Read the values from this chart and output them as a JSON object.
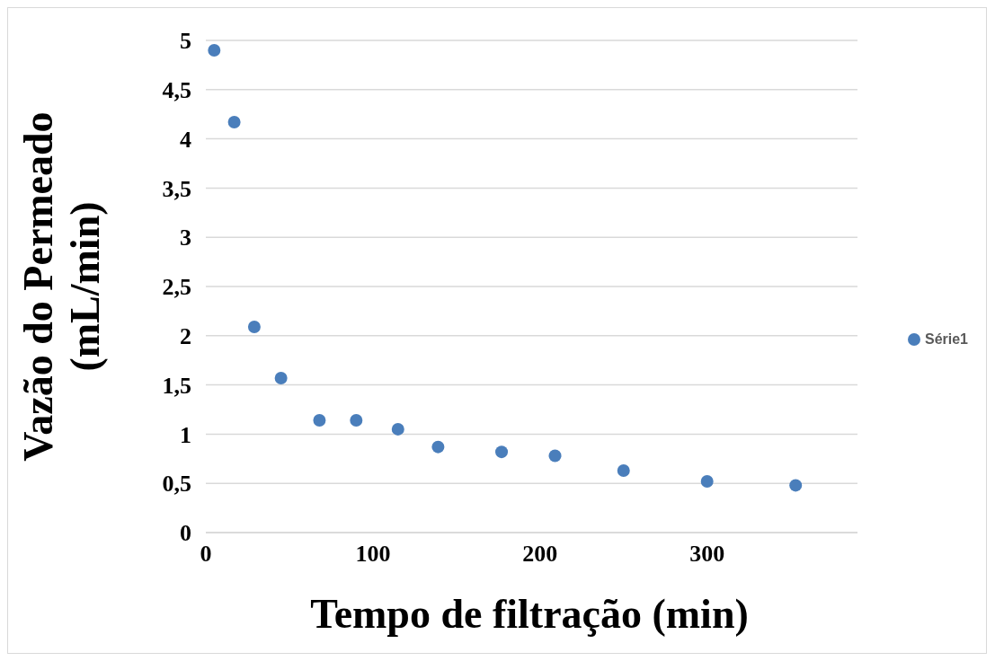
{
  "chart_data": {
    "type": "scatter",
    "xlabel": "Tempo de filtração (min)",
    "ylabel": "Vazão do Permeado (mL/min)",
    "x": [
      5,
      17,
      29,
      45,
      68,
      90,
      115,
      139,
      177,
      209,
      250,
      300,
      353
    ],
    "series": [
      {
        "name": "Série1",
        "color": "#4a7ebb",
        "values": [
          4.9,
          4.17,
          2.09,
          1.57,
          1.14,
          1.14,
          1.05,
          0.87,
          0.82,
          0.78,
          0.63,
          0.52,
          0.48
        ]
      }
    ],
    "xlim": [
      0,
      390
    ],
    "xticks": [
      0,
      100,
      200,
      300
    ],
    "ylim": [
      0,
      5
    ],
    "yticks": [
      0,
      {
        "value": 0.5,
        "label": "0,5"
      },
      1,
      {
        "value": 1.5,
        "label": "1,5"
      },
      2,
      {
        "value": 2.5,
        "label": "2,5"
      },
      3,
      {
        "value": 3.5,
        "label": "3,5"
      },
      4,
      {
        "value": 4.5,
        "label": "4,5"
      },
      5
    ],
    "grid": "y",
    "legend": "right",
    "marker": "circle"
  }
}
